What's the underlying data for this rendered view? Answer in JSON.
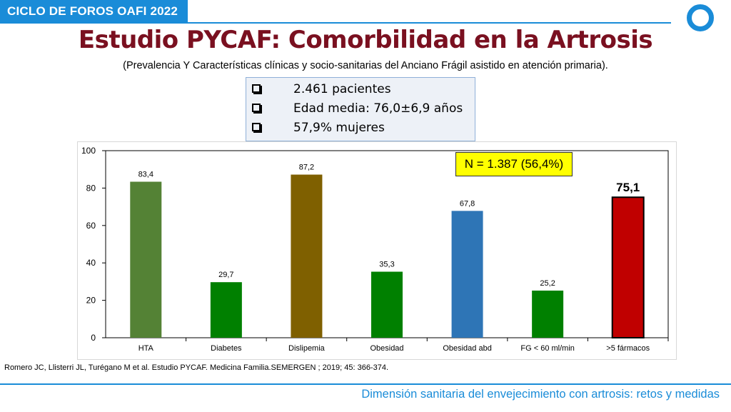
{
  "header": {
    "badge": "CICLO DE FOROS OAFI 2022",
    "logo_icon": "ring-logo-icon",
    "accent": "#1a8cd8"
  },
  "slide": {
    "title": "Estudio PYCAF: Comorbilidad en la Artrosis",
    "subtitle": "(Prevalencia Y Características clínicas y socio-sanitarias del Anciano Frágil asistido en atención primaria).",
    "info_items": [
      "2.461 pacientes",
      "Edad media: 76,0±6,9 años",
      "57,9% mujeres"
    ],
    "n_label": "N = 1.387 (56,4%)",
    "reference": "Romero JC, Llisterri JL, Turégano M et al. Estudio PYCAF. Medicina Familia.SEMERGEN ; 2019; 45: 366-374.",
    "footer": "Dimensión sanitaria del envejecimiento con artrosis: retos y medidas"
  },
  "chart_data": {
    "type": "bar",
    "categories": [
      "HTA",
      "Diabetes",
      "Dislipemia",
      "Obesidad",
      "Obesidad abd",
      "FG < 60 ml/min",
      ">5 fármacos"
    ],
    "values": [
      83.4,
      29.7,
      87.2,
      35.3,
      67.8,
      25.2,
      75.1
    ],
    "value_labels": [
      "83,4",
      "29,7",
      "87,2",
      "35,3",
      "67,8",
      "25,2",
      "75,1"
    ],
    "colors": [
      "#548235",
      "#008000",
      "#7f6000",
      "#008000",
      "#2e75b6",
      "#008000",
      "#c00000"
    ],
    "highlight_index": 6,
    "title": "",
    "xlabel": "",
    "ylabel": "",
    "ylim": [
      0,
      100
    ],
    "yticks": [
      0,
      20,
      40,
      60,
      80,
      100
    ],
    "grid": false,
    "legend": "none"
  }
}
